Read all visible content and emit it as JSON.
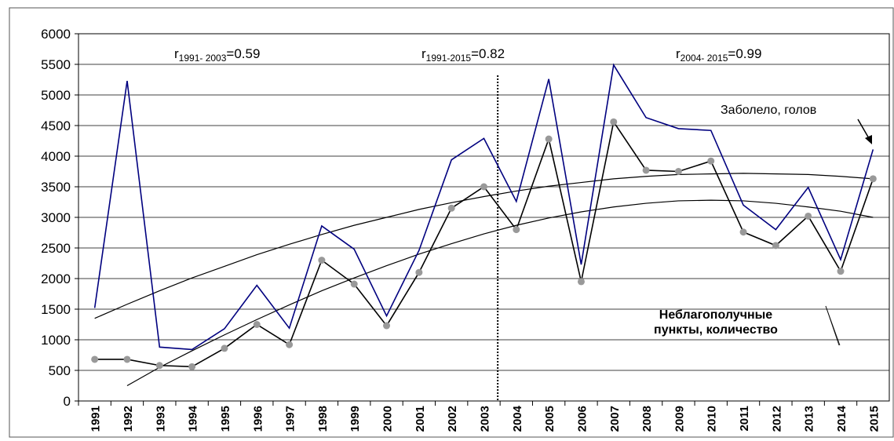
{
  "chart_data": {
    "type": "line",
    "categories": [
      "1991",
      "1992",
      "1993",
      "1994",
      "1995",
      "1996",
      "1997",
      "1998",
      "1999",
      "2000",
      "2001",
      "2002",
      "2003",
      "2004",
      "2005",
      "2006",
      "2007",
      "2008",
      "2009",
      "2010",
      "2011",
      "2012",
      "2013",
      "2014",
      "2015"
    ],
    "series": [
      {
        "name": "Заболело, голов",
        "color": "#00007f",
        "marker": false,
        "values": [
          1520,
          5230,
          880,
          840,
          1180,
          1890,
          1190,
          2860,
          2480,
          1390,
          2460,
          3940,
          4290,
          3260,
          5260,
          2230,
          5490,
          4630,
          4450,
          4420,
          3200,
          2800,
          3490,
          2310,
          4110
        ]
      },
      {
        "name": [
          "Неблагополучные",
          "пункты, количество"
        ],
        "color": "#000000",
        "marker": true,
        "marker_color": "#999999",
        "values": [
          680,
          680,
          580,
          560,
          860,
          1250,
          920,
          2300,
          1910,
          1230,
          2100,
          3150,
          3500,
          2800,
          4280,
          1950,
          4560,
          3770,
          3750,
          3920,
          2760,
          2540,
          3020,
          2120,
          3630
        ]
      }
    ],
    "trendlines": [
      {
        "color": "#000000",
        "values": [
          1350,
          1580,
          1800,
          2010,
          2200,
          2390,
          2560,
          2720,
          2870,
          3000,
          3130,
          3240,
          3340,
          3430,
          3510,
          3570,
          3630,
          3670,
          3700,
          3710,
          3720,
          3710,
          3700,
          3670,
          3630
        ]
      },
      {
        "color": "#000000",
        "values": [
          null,
          250,
          550,
          820,
          1080,
          1330,
          1570,
          1800,
          2010,
          2210,
          2400,
          2570,
          2730,
          2870,
          2990,
          3090,
          3170,
          3230,
          3270,
          3280,
          3270,
          3230,
          3170,
          3100,
          3000
        ]
      }
    ],
    "annotations": [
      {
        "main": "r",
        "sub": "1991- 2003",
        "value": "=0.59"
      },
      {
        "main": "r",
        "sub": "1991-2015",
        "value": "=0.82"
      },
      {
        "main": "r",
        "sub": "2004- 2015",
        "value": "=0.99"
      }
    ],
    "ylim": [
      0,
      6000
    ],
    "yticks": [
      0,
      500,
      1000,
      1500,
      2000,
      2500,
      3000,
      3500,
      4000,
      4500,
      5000,
      5500,
      6000
    ],
    "grid": true
  }
}
